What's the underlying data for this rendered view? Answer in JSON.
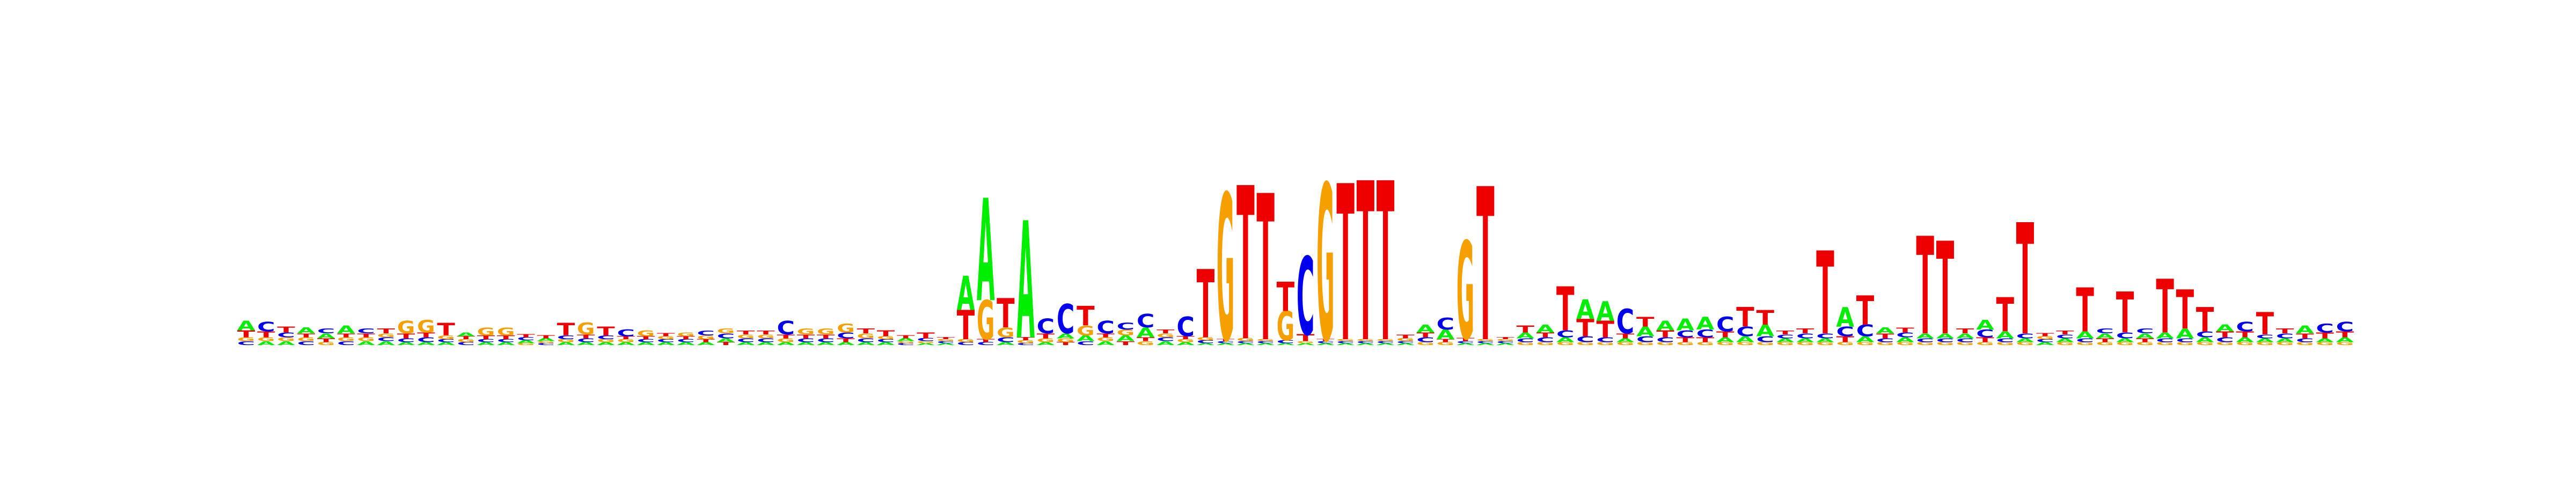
{
  "logo": {
    "type": "sequence-logo",
    "alphabet": [
      "A",
      "C",
      "G",
      "T"
    ],
    "colors": {
      "A": "#00ee00",
      "C": "#0000ee",
      "G": "#f5a000",
      "T": "#ee0000"
    },
    "max_bits": 2.0,
    "positions": [
      {
        "A": 0.1,
        "C": 0.04,
        "G": 0.04,
        "T": 0.07
      },
      {
        "A": 0.04,
        "C": 0.1,
        "G": 0.04,
        "T": 0.06
      },
      {
        "A": 0.04,
        "C": 0.05,
        "G": 0.04,
        "T": 0.06
      },
      {
        "A": 0.06,
        "C": 0.04,
        "G": 0.04,
        "T": 0.04
      },
      {
        "A": 0.05,
        "C": 0.05,
        "G": 0.03,
        "T": 0.04
      },
      {
        "A": 0.08,
        "C": 0.04,
        "G": 0.04,
        "T": 0.04
      },
      {
        "A": 0.04,
        "C": 0.05,
        "G": 0.04,
        "T": 0.04
      },
      {
        "A": 0.04,
        "C": 0.04,
        "G": 0.04,
        "T": 0.05
      },
      {
        "A": 0.03,
        "C": 0.04,
        "G": 0.13,
        "T": 0.05
      },
      {
        "A": 0.03,
        "C": 0.05,
        "G": 0.13,
        "T": 0.05
      },
      {
        "A": 0.03,
        "C": 0.03,
        "G": 0.04,
        "T": 0.13
      },
      {
        "A": 0.04,
        "C": 0.03,
        "G": 0.03,
        "T": 0.03
      },
      {
        "A": 0.03,
        "C": 0.03,
        "G": 0.08,
        "T": 0.04
      },
      {
        "A": 0.03,
        "C": 0.03,
        "G": 0.08,
        "T": 0.04
      },
      {
        "A": 0.03,
        "C": 0.03,
        "G": 0.02,
        "T": 0.03
      },
      {
        "A": 0.03,
        "C": 0.02,
        "G": 0.02,
        "T": 0.03
      },
      {
        "A": 0.03,
        "C": 0.04,
        "G": 0.03,
        "T": 0.13
      },
      {
        "A": 0.03,
        "C": 0.04,
        "G": 0.12,
        "T": 0.04
      },
      {
        "A": 0.03,
        "C": 0.04,
        "G": 0.03,
        "T": 0.09
      },
      {
        "A": 0.03,
        "C": 0.07,
        "G": 0.03,
        "T": 0.03
      },
      {
        "A": 0.03,
        "C": 0.03,
        "G": 0.06,
        "T": 0.03
      },
      {
        "A": 0.03,
        "C": 0.03,
        "G": 0.03,
        "T": 0.03
      },
      {
        "A": 0.03,
        "C": 0.03,
        "G": 0.04,
        "T": 0.03
      },
      {
        "A": 0.03,
        "C": 0.05,
        "G": 0.04,
        "T": 0.03
      },
      {
        "A": 0.04,
        "C": 0.05,
        "G": 0.05,
        "T": 0.03
      },
      {
        "A": 0.03,
        "C": 0.04,
        "G": 0.04,
        "T": 0.04
      },
      {
        "A": 0.03,
        "C": 0.04,
        "G": 0.04,
        "T": 0.04
      },
      {
        "A": 0.03,
        "C": 0.14,
        "G": 0.04,
        "T": 0.04
      },
      {
        "A": 0.03,
        "C": 0.04,
        "G": 0.06,
        "T": 0.04
      },
      {
        "A": 0.03,
        "C": 0.04,
        "G": 0.06,
        "T": 0.04
      },
      {
        "A": 0.03,
        "C": 0.06,
        "G": 0.09,
        "T": 0.04
      },
      {
        "A": 0.03,
        "C": 0.04,
        "G": 0.05,
        "T": 0.05
      },
      {
        "A": 0.03,
        "C": 0.03,
        "G": 0.03,
        "T": 0.06
      },
      {
        "A": 0.03,
        "C": 0.02,
        "G": 0.02,
        "T": 0.03
      },
      {
        "A": 0.02,
        "C": 0.03,
        "G": 0.02,
        "T": 0.06
      },
      {
        "A": 0.02,
        "C": 0.02,
        "G": 0.02,
        "T": 0.02
      },
      {
        "A": 0.35,
        "C": 0.03,
        "G": 0.03,
        "T": 0.3
      },
      {
        "A": 1.05,
        "C": 0.03,
        "G": 0.4,
        "T": 0.03
      },
      {
        "A": 0.03,
        "C": 0.05,
        "G": 0.1,
        "T": 0.3
      },
      {
        "A": 1.2,
        "C": 0.02,
        "G": 0.03,
        "T": 0.03
      },
      {
        "A": 0.03,
        "C": 0.15,
        "G": 0.04,
        "T": 0.05
      },
      {
        "A": 0.05,
        "C": 0.3,
        "G": 0.04,
        "T": 0.03
      },
      {
        "A": 0.06,
        "C": 0.04,
        "G": 0.1,
        "T": 0.2
      },
      {
        "A": 0.04,
        "C": 0.13,
        "G": 0.04,
        "T": 0.04
      },
      {
        "A": 0.06,
        "C": 0.07,
        "G": 0.06,
        "T": 0.04
      },
      {
        "A": 0.1,
        "C": 0.14,
        "G": 0.04,
        "T": 0.04
      },
      {
        "A": 0.04,
        "C": 0.04,
        "G": 0.04,
        "T": 0.04
      },
      {
        "A": 0.03,
        "C": 0.2,
        "G": 0.03,
        "T": 0.03
      },
      {
        "A": 0.02,
        "C": 0.03,
        "G": 0.03,
        "T": 0.7
      },
      {
        "A": 0.02,
        "C": 0.02,
        "G": 1.5,
        "T": 0.02
      },
      {
        "A": 0.02,
        "C": 0.02,
        "G": 0.03,
        "T": 1.57
      },
      {
        "A": 0.02,
        "C": 0.02,
        "G": 0.02,
        "T": 1.5
      },
      {
        "A": 0.02,
        "C": 0.03,
        "G": 0.3,
        "T": 0.3
      },
      {
        "A": 0.02,
        "C": 0.8,
        "G": 0.02,
        "T": 0.07
      },
      {
        "A": 0.02,
        "C": 0.02,
        "G": 1.6,
        "T": 0.02
      },
      {
        "A": 0.02,
        "C": 0.02,
        "G": 0.02,
        "T": 1.6
      },
      {
        "A": 0.02,
        "C": 0.02,
        "G": 0.02,
        "T": 1.63
      },
      {
        "A": 0.02,
        "C": 0.02,
        "G": 0.02,
        "T": 1.63
      },
      {
        "A": 0.02,
        "C": 0.02,
        "G": 0.03,
        "T": 0.04
      },
      {
        "A": 0.08,
        "C": 0.05,
        "G": 0.03,
        "T": 0.05
      },
      {
        "A": 0.1,
        "C": 0.12,
        "G": 0.03,
        "T": 0.03
      },
      {
        "A": 0.02,
        "C": 0.02,
        "G": 1.0,
        "T": 0.03
      },
      {
        "A": 0.02,
        "C": 0.02,
        "G": 0.02,
        "T": 1.57
      },
      {
        "A": 0.02,
        "C": 0.02,
        "G": 0.02,
        "T": 0.02
      },
      {
        "A": 0.06,
        "C": 0.04,
        "G": 0.03,
        "T": 0.07
      },
      {
        "A": 0.08,
        "C": 0.05,
        "G": 0.03,
        "T": 0.05
      },
      {
        "A": 0.05,
        "C": 0.07,
        "G": 0.03,
        "T": 0.45
      },
      {
        "A": 0.2,
        "C": 0.06,
        "G": 0.03,
        "T": 0.18
      },
      {
        "A": 0.2,
        "C": 0.05,
        "G": 0.03,
        "T": 0.17
      },
      {
        "A": 0.04,
        "C": 0.25,
        "G": 0.03,
        "T": 0.05
      },
      {
        "A": 0.1,
        "C": 0.06,
        "G": 0.03,
        "T": 0.1
      },
      {
        "A": 0.1,
        "C": 0.05,
        "G": 0.03,
        "T": 0.07
      },
      {
        "A": 0.12,
        "C": 0.07,
        "G": 0.03,
        "T": 0.05
      },
      {
        "A": 0.13,
        "C": 0.08,
        "G": 0.03,
        "T": 0.05
      },
      {
        "A": 0.05,
        "C": 0.15,
        "G": 0.03,
        "T": 0.06
      },
      {
        "A": 0.06,
        "C": 0.1,
        "G": 0.03,
        "T": 0.2
      },
      {
        "A": 0.12,
        "C": 0.06,
        "G": 0.03,
        "T": 0.15
      },
      {
        "A": 0.04,
        "C": 0.04,
        "G": 0.03,
        "T": 0.04
      },
      {
        "A": 0.04,
        "C": 0.05,
        "G": 0.03,
        "T": 0.05
      },
      {
        "A": 0.04,
        "C": 0.05,
        "G": 0.03,
        "T": 0.85
      },
      {
        "A": 0.2,
        "C": 0.1,
        "G": 0.03,
        "T": 0.06
      },
      {
        "A": 0.06,
        "C": 0.12,
        "G": 0.03,
        "T": 0.3
      },
      {
        "A": 0.06,
        "C": 0.04,
        "G": 0.03,
        "T": 0.05
      },
      {
        "A": 0.05,
        "C": 0.05,
        "G": 0.03,
        "T": 0.05
      },
      {
        "A": 0.05,
        "C": 0.04,
        "G": 0.03,
        "T": 1.0
      },
      {
        "A": 0.05,
        "C": 0.04,
        "G": 0.03,
        "T": 0.95
      },
      {
        "A": 0.05,
        "C": 0.04,
        "G": 0.03,
        "T": 0.05
      },
      {
        "A": 0.1,
        "C": 0.08,
        "G": 0.03,
        "T": 0.05
      },
      {
        "A": 0.07,
        "C": 0.04,
        "G": 0.03,
        "T": 0.35
      },
      {
        "A": 0.04,
        "C": 0.05,
        "G": 0.03,
        "T": 1.14
      },
      {
        "A": 0.03,
        "C": 0.03,
        "G": 0.03,
        "T": 0.03
      },
      {
        "A": 0.04,
        "C": 0.04,
        "G": 0.03,
        "T": 0.04
      },
      {
        "A": 0.07,
        "C": 0.04,
        "G": 0.03,
        "T": 0.45
      },
      {
        "A": 0.05,
        "C": 0.05,
        "G": 0.03,
        "T": 0.04
      },
      {
        "A": 0.04,
        "C": 0.06,
        "G": 0.03,
        "T": 0.42
      },
      {
        "A": 0.05,
        "C": 0.05,
        "G": 0.03,
        "T": 0.04
      },
      {
        "A": 0.06,
        "C": 0.04,
        "G": 0.03,
        "T": 0.55
      },
      {
        "A": 0.1,
        "C": 0.04,
        "G": 0.03,
        "T": 0.4
      },
      {
        "A": 0.05,
        "C": 0.06,
        "G": 0.03,
        "T": 0.25
      },
      {
        "A": 0.07,
        "C": 0.05,
        "G": 0.03,
        "T": 0.06
      },
      {
        "A": 0.05,
        "C": 0.1,
        "G": 0.03,
        "T": 0.06
      },
      {
        "A": 0.04,
        "C": 0.04,
        "G": 0.03,
        "T": 0.23
      },
      {
        "A": 0.04,
        "C": 0.05,
        "G": 0.03,
        "T": 0.05
      },
      {
        "A": 0.08,
        "C": 0.04,
        "G": 0.03,
        "T": 0.05
      },
      {
        "A": 0.04,
        "C": 0.09,
        "G": 0.03,
        "T": 0.06
      },
      {
        "A": 0.05,
        "C": 0.1,
        "G": 0.03,
        "T": 0.06
      }
    ]
  }
}
